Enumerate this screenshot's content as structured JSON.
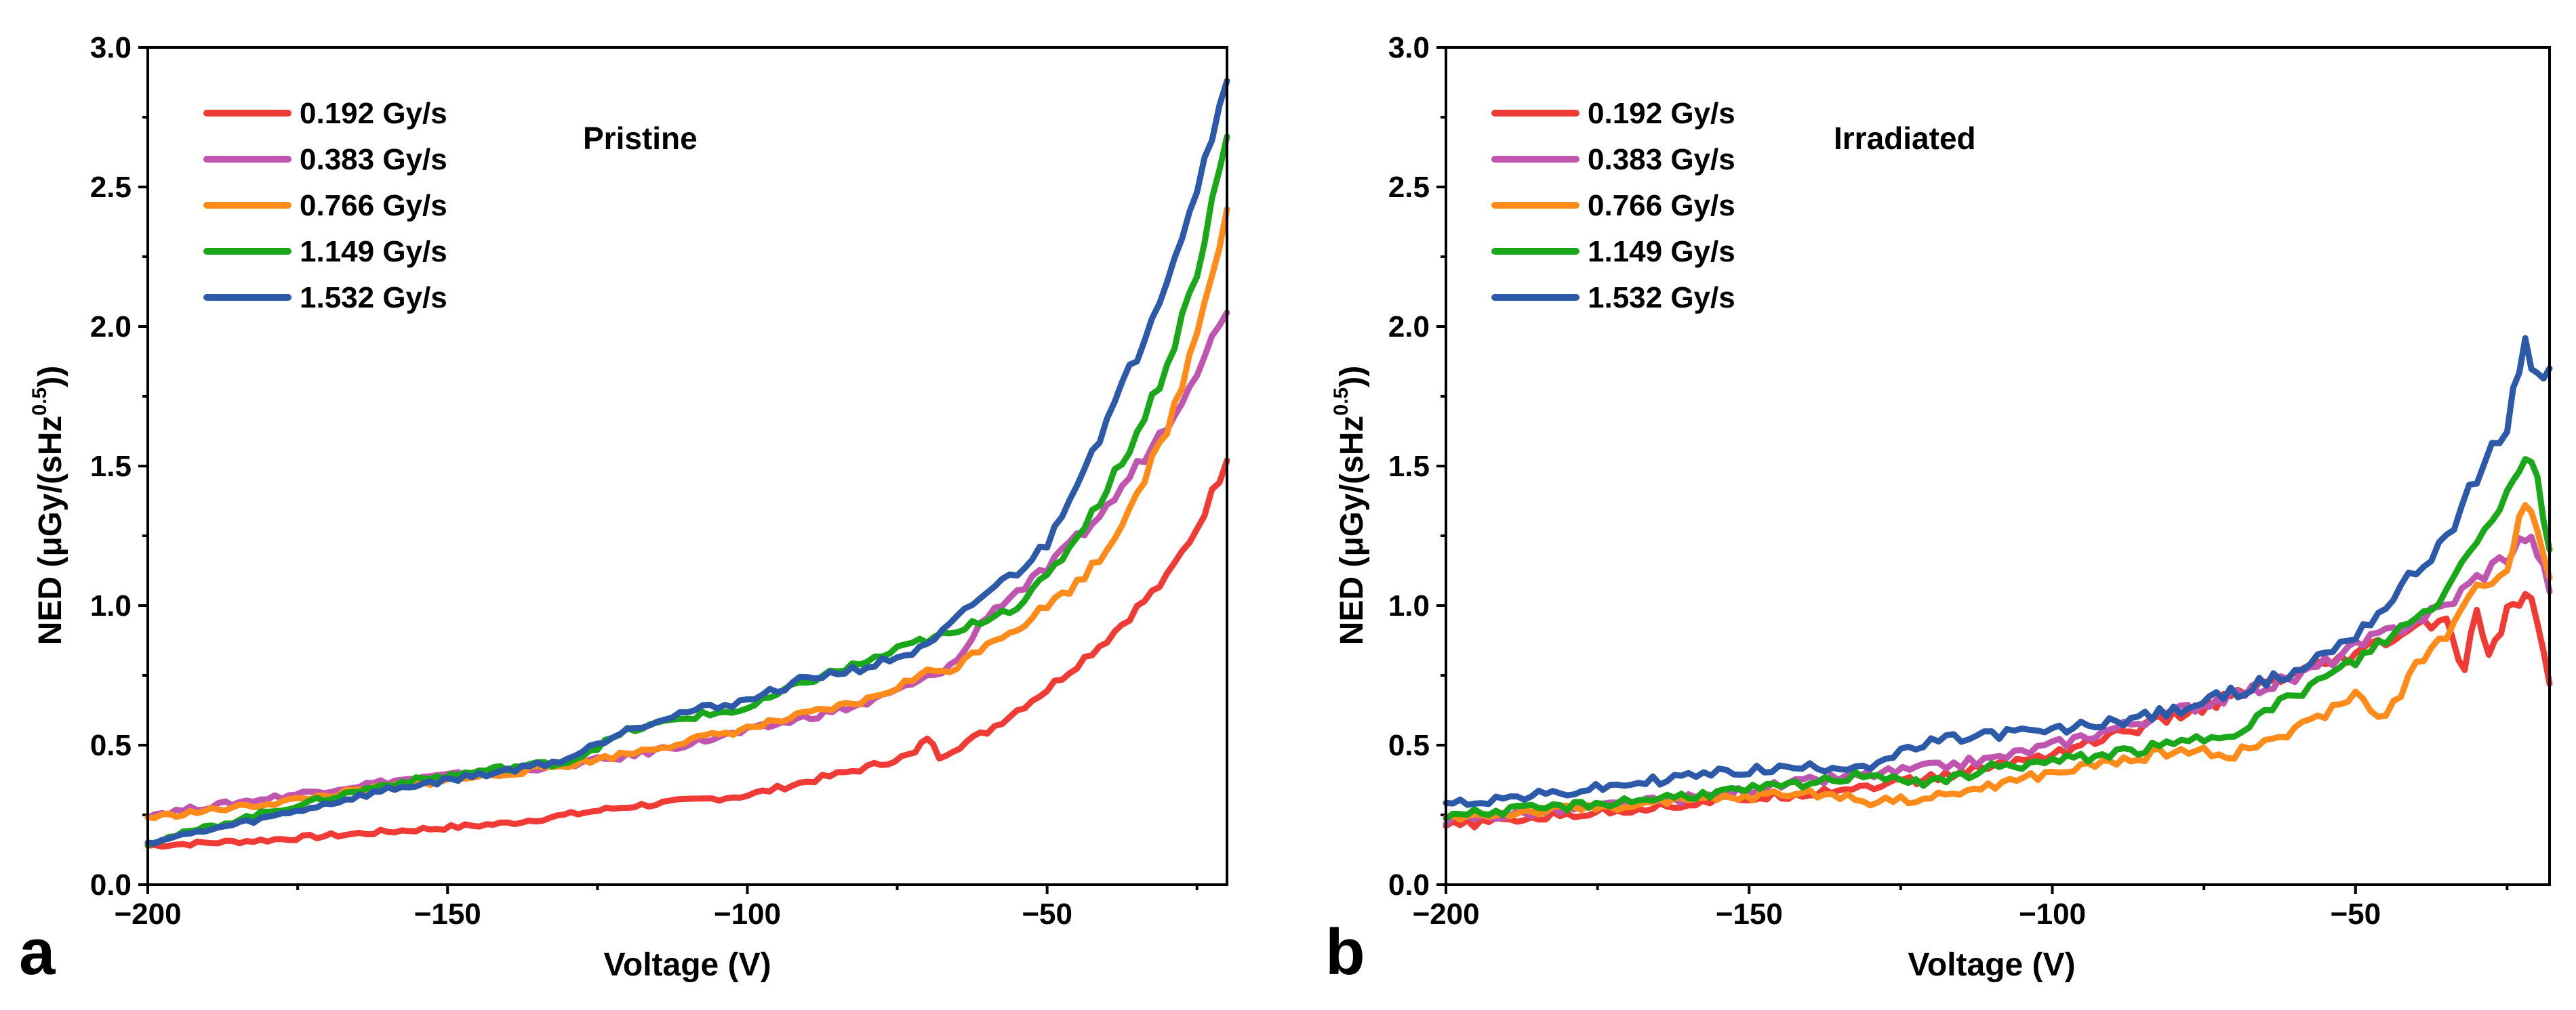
{
  "chart_data": [
    {
      "type": "line",
      "panel_letter": "a",
      "annotation": "Pristine",
      "xlabel": "Voltage (V)",
      "ylabel": "NED (μGy/(sHz^0.5))",
      "ylabel_parts": {
        "main": "NED (μGy/(sHz",
        "sup": "0.5",
        "end": "))"
      },
      "xlim": [
        -200,
        -20
      ],
      "ylim": [
        0,
        3.0
      ],
      "x_ticks": [
        -200,
        -150,
        -100,
        -50
      ],
      "x_tick_labels": [
        "−200",
        "−150",
        "−100",
        "−50"
      ],
      "y_ticks": [
        0,
        0.5,
        1.0,
        1.5,
        2.0,
        2.5,
        3.0
      ],
      "y_tick_labels": [
        "0.0",
        "0.5",
        "1.0",
        "1.5",
        "2.0",
        "2.5",
        "3.0"
      ],
      "legend_position": "top-left",
      "grid": false,
      "series": [
        {
          "name": "0.192 Gy/s",
          "color": "#f03a35",
          "x": [
            -200,
            -180,
            -160,
            -140,
            -120,
            -100,
            -90,
            -80,
            -72,
            -70,
            -68,
            -60,
            -50,
            -40,
            -30,
            -25,
            -20
          ],
          "y": [
            0.14,
            0.16,
            0.19,
            0.22,
            0.28,
            0.32,
            0.37,
            0.42,
            0.47,
            0.53,
            0.46,
            0.55,
            0.7,
            0.88,
            1.1,
            1.28,
            1.52
          ]
        },
        {
          "name": "0.383 Gy/s",
          "color": "#c055b0",
          "x": [
            -200,
            -180,
            -160,
            -140,
            -130,
            -120,
            -100,
            -80,
            -70,
            -65,
            -60,
            -50,
            -40,
            -30,
            -20
          ],
          "y": [
            0.25,
            0.31,
            0.37,
            0.41,
            0.43,
            0.46,
            0.55,
            0.65,
            0.74,
            0.8,
            0.97,
            1.13,
            1.35,
            1.65,
            2.05
          ]
        },
        {
          "name": "0.766 Gy/s",
          "color": "#ff8c1a",
          "x": [
            -200,
            -180,
            -160,
            -140,
            -130,
            -120,
            -100,
            -80,
            -70,
            -65,
            -60,
            -55,
            -50,
            -45,
            -40,
            -30,
            -25,
            -20
          ],
          "y": [
            0.24,
            0.29,
            0.35,
            0.4,
            0.43,
            0.47,
            0.56,
            0.66,
            0.76,
            0.78,
            0.87,
            0.92,
            1.0,
            1.08,
            1.2,
            1.62,
            1.98,
            2.42
          ]
        },
        {
          "name": "1.149 Gy/s",
          "color": "#1aa81a",
          "x": [
            -200,
            -180,
            -160,
            -140,
            -130,
            -120,
            -110,
            -100,
            -90,
            -80,
            -70,
            -65,
            -60,
            -55,
            -50,
            -45,
            -40,
            -35,
            -30,
            -25,
            -20
          ],
          "y": [
            0.15,
            0.26,
            0.36,
            0.42,
            0.44,
            0.55,
            0.6,
            0.63,
            0.73,
            0.8,
            0.88,
            0.9,
            0.96,
            1.0,
            1.1,
            1.25,
            1.42,
            1.62,
            1.86,
            2.2,
            2.68
          ]
        },
        {
          "name": "1.532 Gy/s",
          "color": "#2c5aa8",
          "x": [
            -200,
            -180,
            -160,
            -140,
            -130,
            -120,
            -110,
            -100,
            -90,
            -80,
            -70,
            -65,
            -60,
            -55,
            -50,
            -45,
            -40,
            -35,
            -30,
            -25,
            -20
          ],
          "y": [
            0.15,
            0.24,
            0.34,
            0.41,
            0.45,
            0.56,
            0.62,
            0.66,
            0.74,
            0.78,
            0.85,
            0.95,
            1.05,
            1.12,
            1.22,
            1.45,
            1.66,
            1.9,
            2.18,
            2.5,
            2.88
          ]
        }
      ]
    },
    {
      "type": "line",
      "panel_letter": "b",
      "annotation": "Irradiated",
      "xlabel": "Voltage (V)",
      "ylabel": "NED (μGy/(sHz^0.5))",
      "ylabel_parts": {
        "main": "NED (μGy/(sHz",
        "sup": "0.5",
        "end": "))"
      },
      "xlim": [
        -200,
        -18
      ],
      "ylim": [
        0,
        3.0
      ],
      "x_ticks": [
        -200,
        -150,
        -100,
        -50
      ],
      "x_tick_labels": [
        "−200",
        "−150",
        "−100",
        "−50"
      ],
      "y_ticks": [
        0,
        0.5,
        1.0,
        1.5,
        2.0,
        2.5,
        3.0
      ],
      "y_tick_labels": [
        "0.0",
        "0.5",
        "1.0",
        "1.5",
        "2.0",
        "2.5",
        "3.0"
      ],
      "legend_position": "top-left",
      "grid": false,
      "series": [
        {
          "name": "0.192 Gy/s",
          "color": "#f03a35",
          "x": [
            -200,
            -180,
            -160,
            -140,
            -120,
            -100,
            -80,
            -60,
            -50,
            -40,
            -35,
            -32,
            -30,
            -28,
            -25,
            -22,
            -20,
            -18
          ],
          "y": [
            0.21,
            0.25,
            0.29,
            0.33,
            0.38,
            0.47,
            0.6,
            0.75,
            0.82,
            0.92,
            0.95,
            0.75,
            1.0,
            0.8,
            0.97,
            1.05,
            0.95,
            0.72
          ]
        },
        {
          "name": "0.383 Gy/s",
          "color": "#c055b0",
          "x": [
            -200,
            -180,
            -160,
            -140,
            -120,
            -110,
            -100,
            -80,
            -60,
            -50,
            -40,
            -35,
            -30,
            -25,
            -22,
            -20,
            -18
          ],
          "y": [
            0.23,
            0.27,
            0.31,
            0.37,
            0.42,
            0.45,
            0.5,
            0.62,
            0.74,
            0.85,
            0.95,
            1.0,
            1.1,
            1.18,
            1.25,
            1.2,
            1.05
          ]
        },
        {
          "name": "0.766 Gy/s",
          "color": "#ff8c1a",
          "x": [
            -200,
            -180,
            -160,
            -140,
            -130,
            -120,
            -100,
            -80,
            -70,
            -60,
            -50,
            -45,
            -40,
            -35,
            -30,
            -25,
            -22,
            -20,
            -18
          ],
          "y": [
            0.24,
            0.27,
            0.3,
            0.33,
            0.3,
            0.31,
            0.4,
            0.48,
            0.47,
            0.55,
            0.68,
            0.6,
            0.78,
            0.9,
            1.05,
            1.15,
            1.38,
            1.3,
            1.1
          ]
        },
        {
          "name": "1.149 Gy/s",
          "color": "#1aa81a",
          "x": [
            -200,
            -180,
            -160,
            -140,
            -130,
            -120,
            -110,
            -100,
            -80,
            -70,
            -60,
            -50,
            -45,
            -40,
            -35,
            -30,
            -25,
            -22,
            -20,
            -18
          ],
          "y": [
            0.25,
            0.28,
            0.32,
            0.36,
            0.4,
            0.36,
            0.42,
            0.44,
            0.5,
            0.55,
            0.68,
            0.8,
            0.88,
            0.95,
            1.05,
            1.25,
            1.4,
            1.55,
            1.45,
            1.2
          ]
        },
        {
          "name": "1.532 Gy/s",
          "color": "#2c5aa8",
          "x": [
            -200,
            -180,
            -160,
            -150,
            -140,
            -130,
            -120,
            -110,
            -100,
            -80,
            -60,
            -50,
            -45,
            -40,
            -35,
            -30,
            -25,
            -22,
            -20,
            -18
          ],
          "y": [
            0.29,
            0.33,
            0.39,
            0.41,
            0.42,
            0.43,
            0.51,
            0.54,
            0.55,
            0.62,
            0.76,
            0.9,
            1.0,
            1.12,
            1.25,
            1.45,
            1.65,
            1.95,
            1.8,
            1.85
          ]
        }
      ]
    }
  ]
}
